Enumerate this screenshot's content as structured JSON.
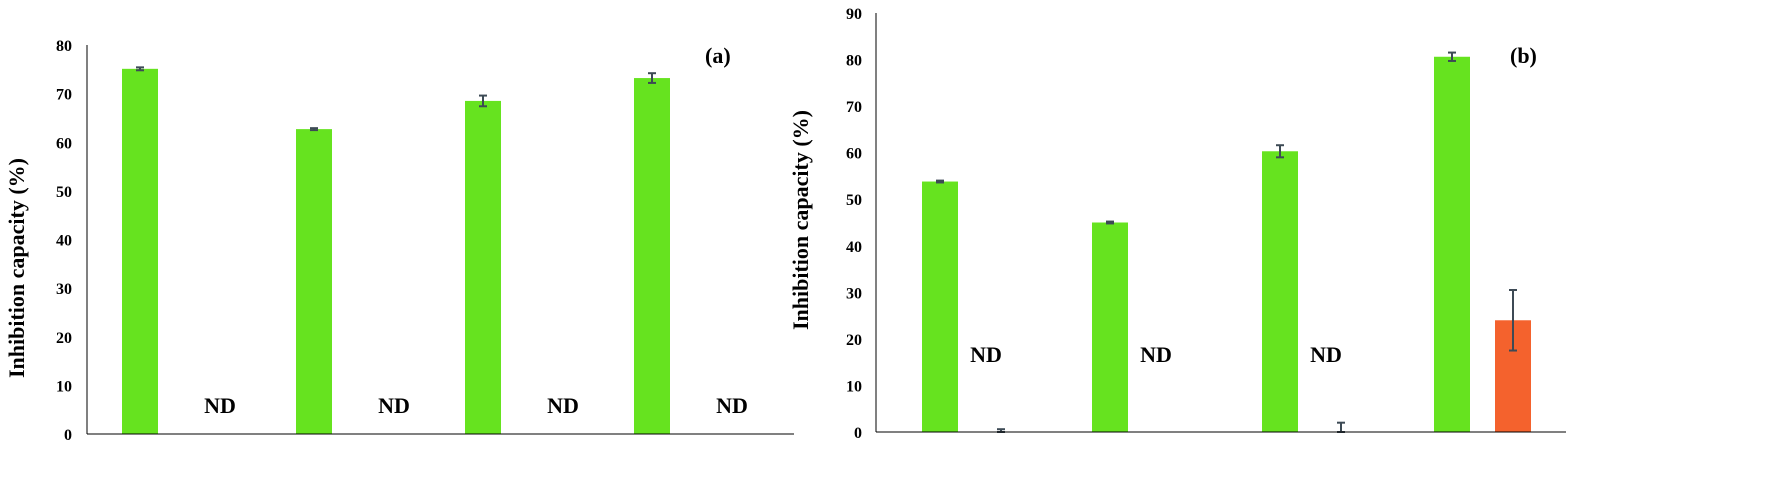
{
  "chart_data": [
    {
      "type": "bar",
      "panel_label": "(a)",
      "ylabel": "Inhibition capacity (%)",
      "ylim": [
        0,
        80
      ],
      "yticks": [
        "0",
        "10",
        "20",
        "30",
        "40",
        "50",
        "60",
        "70",
        "80"
      ],
      "grid": false,
      "groups": 4,
      "series": [
        {
          "color": "#66e31f",
          "values": [
            75.1,
            62.7,
            68.5,
            73.2
          ],
          "errors": [
            0.3,
            0.2,
            1.1,
            1.0
          ]
        },
        {
          "color": "#f4622d",
          "values": [
            null,
            null,
            null,
            null
          ],
          "errors": [
            null,
            null,
            null,
            null
          ]
        }
      ],
      "annotations": [
        "ND",
        "ND",
        "ND",
        "ND"
      ]
    },
    {
      "type": "bar",
      "panel_label": "(b)",
      "ylabel": "Inhibition capacity (%)",
      "ylim": [
        0,
        90
      ],
      "yticks": [
        "0",
        "10",
        "20",
        "30",
        "40",
        "50",
        "60",
        "70",
        "80",
        "90"
      ],
      "grid": false,
      "groups": 4,
      "series": [
        {
          "color": "#66e31f",
          "values": [
            53.8,
            45.0,
            60.3,
            80.6
          ],
          "errors": [
            0.2,
            0.2,
            1.3,
            0.9
          ]
        },
        {
          "color": "#f4622d",
          "values": [
            0.0,
            null,
            0.0,
            24.0
          ],
          "errors": [
            0.6,
            null,
            2.0,
            6.5
          ]
        }
      ],
      "annotations": [
        "ND",
        "ND",
        "ND",
        ""
      ]
    }
  ]
}
